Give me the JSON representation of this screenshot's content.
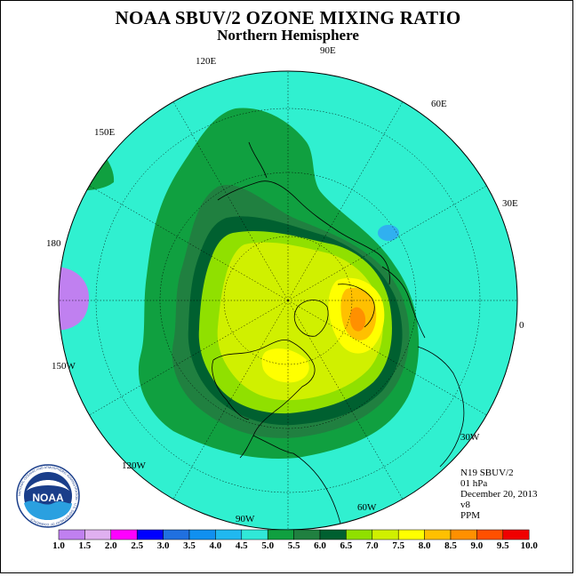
{
  "title": "NOAA SBUV/2 OZONE MIXING RATIO",
  "subtitle": "Northern Hemisphere",
  "longitude_labels": {
    "lon_90e": "90E",
    "lon_60e": "60E",
    "lon_30e": "30E",
    "lon_0": "0",
    "lon_30w": "30W",
    "lon_60w": "60W",
    "lon_90w": "90W",
    "lon_120w": "120W",
    "lon_150w": "150W",
    "lon_180": "180",
    "lon_150e": "150E",
    "lon_120e": "120E"
  },
  "info": {
    "satellite": "N19 SBUV/2",
    "level": "01 hPa",
    "date": "December 20, 2013",
    "version": "v8",
    "units": "PPM"
  },
  "logo": {
    "text": "NOAA",
    "ring_text": "NATIONAL OCEANIC AND ATMOSPHERIC ADMINISTRATION · U.S. DEPARTMENT OF COMMERCE"
  },
  "colorbar": {
    "ticks": [
      "1.0",
      "1.5",
      "2.0",
      "2.5",
      "3.0",
      "3.5",
      "4.0",
      "4.5",
      "5.0",
      "5.5",
      "6.0",
      "6.5",
      "7.0",
      "7.5",
      "8.0",
      "8.5",
      "9.0",
      "9.5",
      "10.0"
    ],
    "colors": [
      "#c080f0",
      "#e0b0f0",
      "#ff00ff",
      "#0000ff",
      "#2070e0",
      "#1090f0",
      "#20b8f0",
      "#30e8d8",
      "#10a040",
      "#208040",
      "#006030",
      "#90e000",
      "#d0f000",
      "#ffff00",
      "#ffc000",
      "#ff9000",
      "#ff5000",
      "#f00000",
      "#8b4513"
    ]
  },
  "colors": {
    "ocean_fill": "#30f0d0",
    "band_5": "#10a040",
    "band_5_5": "#208040",
    "band_6": "#006030",
    "band_6_5": "#90e000",
    "band_7": "#d0f000",
    "band_7_5": "#ffff00",
    "band_8": "#ffc000",
    "band_8_5": "#ff9000",
    "low_blue": "#30b0f0"
  }
}
